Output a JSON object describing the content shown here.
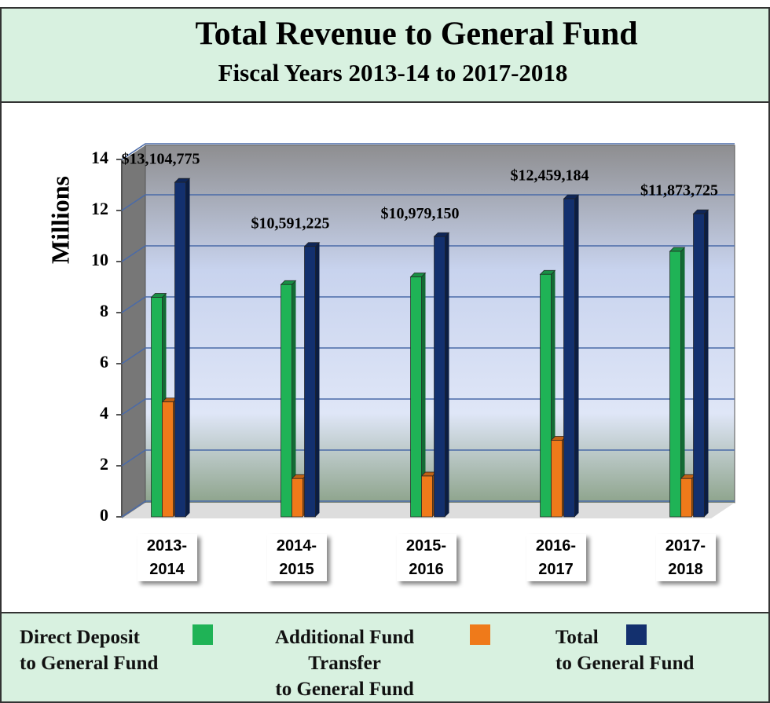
{
  "chart_data": {
    "type": "bar",
    "title": "Total Revenue to General Fund",
    "subtitle": "Fiscal Years 2013-14 to 2017-2018",
    "y_label": "Millions",
    "categories": [
      "2013-\n2014",
      "2014-\n2015",
      "2015-\n2016",
      "2016-\n2017",
      "2017-\n2018"
    ],
    "series": [
      {
        "name": "Direct Deposit\nto General Fund",
        "color": "#1fb356",
        "values": [
          8.6,
          9.1,
          9.4,
          9.5,
          10.4
        ]
      },
      {
        "name": "Additional  Fund\nTransfer\nto General Fund",
        "color": "#ef7a1a",
        "values": [
          4.5,
          1.5,
          1.6,
          3.0,
          1.5
        ]
      },
      {
        "name": "Total\nto General Fund",
        "color": "#13306e",
        "values": [
          13.104775,
          10.591225,
          10.97915,
          12.459184,
          11.873725
        ],
        "value_labels": [
          "$13,104,775",
          "$10,591,225",
          "$10,979,150",
          "$12,459,184",
          "$11,873,725"
        ]
      }
    ],
    "ylim": [
      0,
      14
    ],
    "yticks": [
      0,
      2,
      4,
      6,
      8,
      10,
      12,
      14
    ],
    "grid": true
  }
}
